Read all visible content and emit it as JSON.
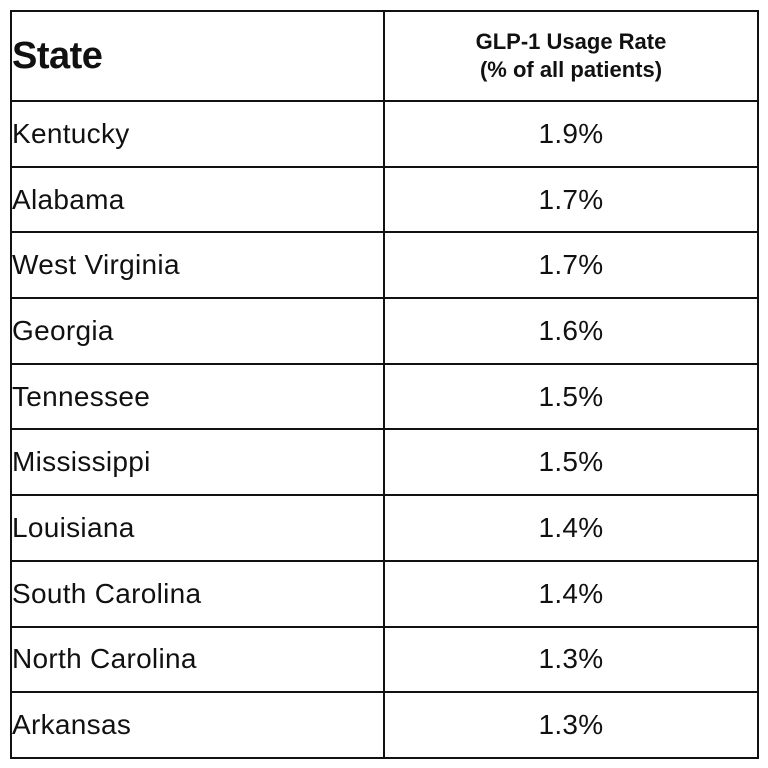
{
  "table": {
    "headers": {
      "state": "State",
      "rate_line1": "GLP-1 Usage Rate",
      "rate_line2": "(% of all patients)"
    },
    "rows": [
      {
        "state": "Kentucky",
        "rate": "1.9%"
      },
      {
        "state": "Alabama",
        "rate": "1.7%"
      },
      {
        "state": "West Virginia",
        "rate": "1.7%"
      },
      {
        "state": "Georgia",
        "rate": "1.6%"
      },
      {
        "state": "Tennessee",
        "rate": "1.5%"
      },
      {
        "state": "Mississippi",
        "rate": "1.5%"
      },
      {
        "state": "Louisiana",
        "rate": "1.4%"
      },
      {
        "state": "South Carolina",
        "rate": "1.4%"
      },
      {
        "state": "North Carolina",
        "rate": "1.3%"
      },
      {
        "state": "Arkansas",
        "rate": "1.3%"
      }
    ]
  }
}
